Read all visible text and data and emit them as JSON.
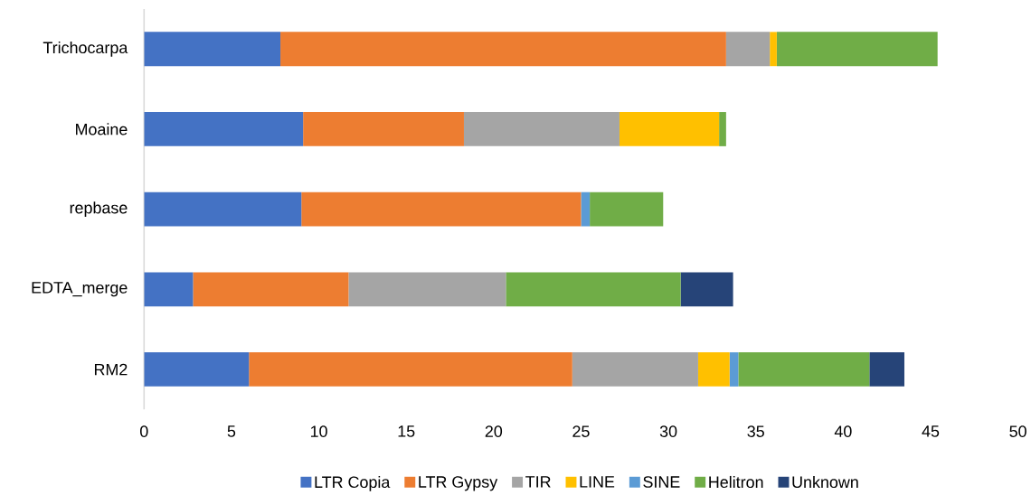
{
  "chart_data": {
    "type": "bar",
    "orientation": "horizontal",
    "stacked": true,
    "categories": [
      "Trichocarpa",
      "Moaine",
      "repbase",
      "EDTA_merge",
      "RM2"
    ],
    "series": [
      {
        "name": "LTR Copia",
        "color": "#4472c4",
        "values": [
          7.8,
          9.1,
          9.0,
          2.8,
          6.0
        ]
      },
      {
        "name": "LTR Gypsy",
        "color": "#ed7d31",
        "values": [
          25.5,
          9.2,
          16.0,
          8.9,
          18.5
        ]
      },
      {
        "name": "TIR",
        "color": "#a5a5a5",
        "values": [
          2.5,
          8.9,
          0,
          9.0,
          7.2
        ]
      },
      {
        "name": "LINE",
        "color": "#ffc000",
        "values": [
          0.4,
          5.7,
          0,
          0,
          1.8
        ]
      },
      {
        "name": "SINE",
        "color": "#5b9bd5",
        "values": [
          0,
          0,
          0.5,
          0,
          0.5
        ]
      },
      {
        "name": "Helitron",
        "color": "#70ad47",
        "values": [
          9.2,
          0.4,
          4.2,
          10.0,
          7.5
        ]
      },
      {
        "name": "Unknown",
        "color": "#264478",
        "values": [
          0,
          0,
          0,
          3.0,
          2.0
        ]
      }
    ],
    "xlim": [
      0,
      50
    ],
    "xticks": [
      0,
      5,
      10,
      15,
      20,
      25,
      30,
      35,
      40,
      45,
      50
    ],
    "grid": false,
    "legend": "bottom"
  }
}
